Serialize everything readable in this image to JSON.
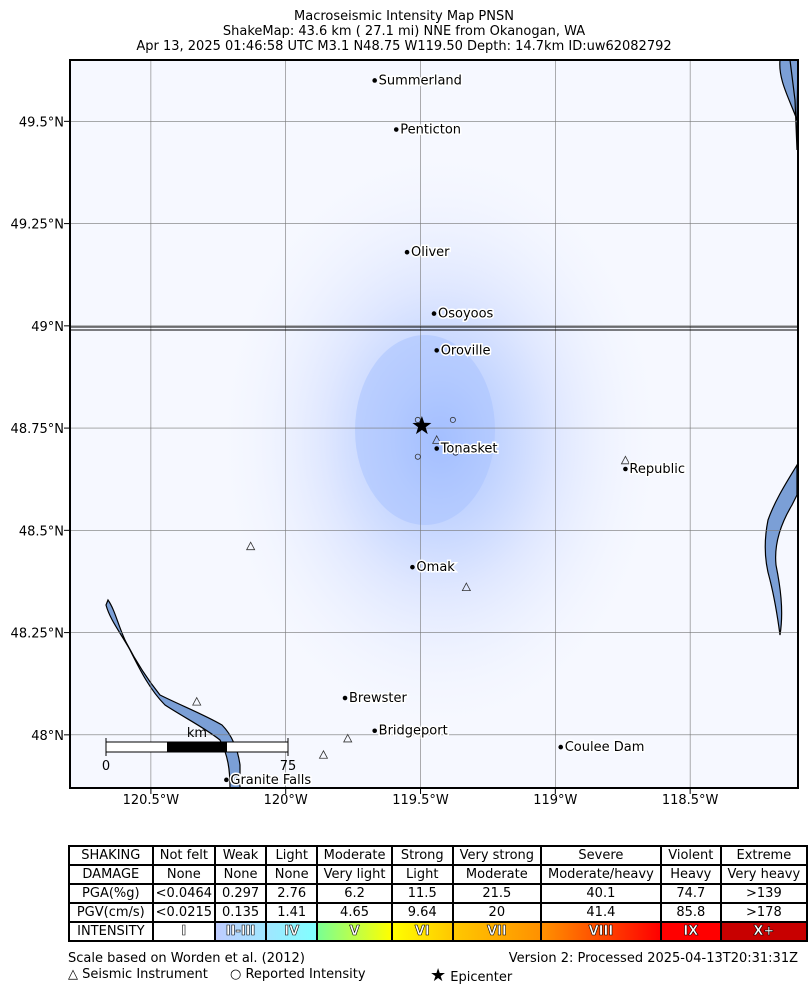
{
  "title": {
    "line1": "Macroseismic Intensity Map PNSN",
    "line2": "ShakeMap: 43.6 km (  27.1 mi) NNE from Okanogan, WA",
    "line3": "Apr 13, 2025 01:46:58 UTC M3.1 N48.75 W119.50 Depth: 14.7km ID:uw62082792"
  },
  "map": {
    "lon_range": [
      -120.8,
      -118.1
    ],
    "lat_range": [
      47.87,
      49.65
    ],
    "x_ticks": [
      {
        "lon": -120.5,
        "label": "120.5°W"
      },
      {
        "lon": -120.0,
        "label": "120°W"
      },
      {
        "lon": -119.5,
        "label": "119.5°W"
      },
      {
        "lon": -119.0,
        "label": "119°W"
      },
      {
        "lon": -118.5,
        "label": "118.5°W"
      }
    ],
    "y_ticks": [
      {
        "lat": 49.5,
        "label": "49.5°N"
      },
      {
        "lat": 49.25,
        "label": "49.25°N"
      },
      {
        "lat": 49.0,
        "label": "49°N"
      },
      {
        "lat": 48.75,
        "label": "48.75°N"
      },
      {
        "lat": 48.5,
        "label": "48.5°N"
      },
      {
        "lat": 48.25,
        "label": "48.25°N"
      },
      {
        "lat": 48.0,
        "label": "48°N"
      }
    ],
    "epicenter": {
      "lat": 48.755,
      "lon": -119.495
    },
    "cities": [
      {
        "name": "Summerland",
        "lat": 49.6,
        "lon": -119.67
      },
      {
        "name": "Penticton",
        "lat": 49.48,
        "lon": -119.59
      },
      {
        "name": "Oliver",
        "lat": 49.18,
        "lon": -119.55
      },
      {
        "name": "Osoyoos",
        "lat": 49.03,
        "lon": -119.45
      },
      {
        "name": "Oroville",
        "lat": 48.94,
        "lon": -119.44
      },
      {
        "name": "Tonasket",
        "lat": 48.7,
        "lon": -119.44
      },
      {
        "name": "Republic",
        "lat": 48.65,
        "lon": -118.74
      },
      {
        "name": "Omak",
        "lat": 48.41,
        "lon": -119.53
      },
      {
        "name": "Brewster",
        "lat": 48.09,
        "lon": -119.78
      },
      {
        "name": "Bridgeport",
        "lat": 48.01,
        "lon": -119.67
      },
      {
        "name": "Coulee Dam",
        "lat": 47.97,
        "lon": -118.98
      },
      {
        "name": "Granite Falls",
        "lat": 47.89,
        "lon": -120.22
      }
    ],
    "instruments": [
      {
        "lat": 48.72,
        "lon": -119.44
      },
      {
        "lat": 48.67,
        "lon": -118.74
      },
      {
        "lat": 48.46,
        "lon": -120.13
      },
      {
        "lat": 48.36,
        "lon": -119.33
      },
      {
        "lat": 48.08,
        "lon": -120.33
      },
      {
        "lat": 47.99,
        "lon": -119.77
      },
      {
        "lat": 47.95,
        "lon": -119.86
      }
    ],
    "reports": [
      {
        "lat": 48.77,
        "lon": -119.51
      },
      {
        "lat": 48.77,
        "lon": -119.38
      },
      {
        "lat": 48.68,
        "lon": -119.51
      },
      {
        "lat": 48.69,
        "lon": -119.37
      }
    ],
    "scale_bar": {
      "unit": "km",
      "min_label": "0",
      "max_label": "75"
    }
  },
  "legend": {
    "columns": [
      "Not felt",
      "Weak",
      "Light",
      "Moderate",
      "Strong",
      "Very strong",
      "Severe",
      "Violent",
      "Extreme"
    ],
    "rows": [
      {
        "head": "SHAKING",
        "cells": [
          "Not felt",
          "Weak",
          "Light",
          "Moderate",
          "Strong",
          "Very strong",
          "Severe",
          "Violent",
          "Extreme"
        ]
      },
      {
        "head": "DAMAGE",
        "cells": [
          "None",
          "None",
          "None",
          "Very light",
          "Light",
          "Moderate",
          "Moderate/heavy",
          "Heavy",
          "Very heavy"
        ]
      },
      {
        "head": "PGA(%g)",
        "cells": [
          "<0.0464",
          "0.297",
          "2.76",
          "6.2",
          "11.5",
          "21.5",
          "40.1",
          "74.7",
          ">139"
        ]
      },
      {
        "head": "PGV(cm/s)",
        "cells": [
          "<0.0215",
          "0.135",
          "1.41",
          "4.65",
          "9.64",
          "20",
          "41.4",
          "85.8",
          ">178"
        ]
      }
    ],
    "intensity_head": "INTENSITY",
    "intensity": [
      "I",
      "II-III",
      "IV",
      "V",
      "VI",
      "VII",
      "VIII",
      "IX",
      "X+"
    ],
    "intensity_colors": [
      [
        "#ffffff",
        "#ffffff"
      ],
      [
        "#bfccff",
        "#a0e6ff"
      ],
      [
        "#a0e6ff",
        "#80ffff"
      ],
      [
        "#7aff93",
        "#ffff00"
      ],
      [
        "#ffff00",
        "#ffc800"
      ],
      [
        "#ffc800",
        "#ff9100"
      ],
      [
        "#ff9100",
        "#ff0000"
      ],
      [
        "#ff0000",
        "#ff0000"
      ],
      [
        "#c80000",
        "#c80000"
      ]
    ]
  },
  "footer": {
    "scale_note": "Scale based on Worden et al. (2012)",
    "version": "Version 2: Processed 2025-04-13T20:31:31Z",
    "instrument_label": "Seismic Instrument",
    "reported_label": "Reported Intensity",
    "epicenter_label": "Epicenter"
  },
  "colors": {
    "water": "#7b9fd6",
    "background": "#f6f8ff",
    "intensity_center": "#a8c4ff"
  }
}
